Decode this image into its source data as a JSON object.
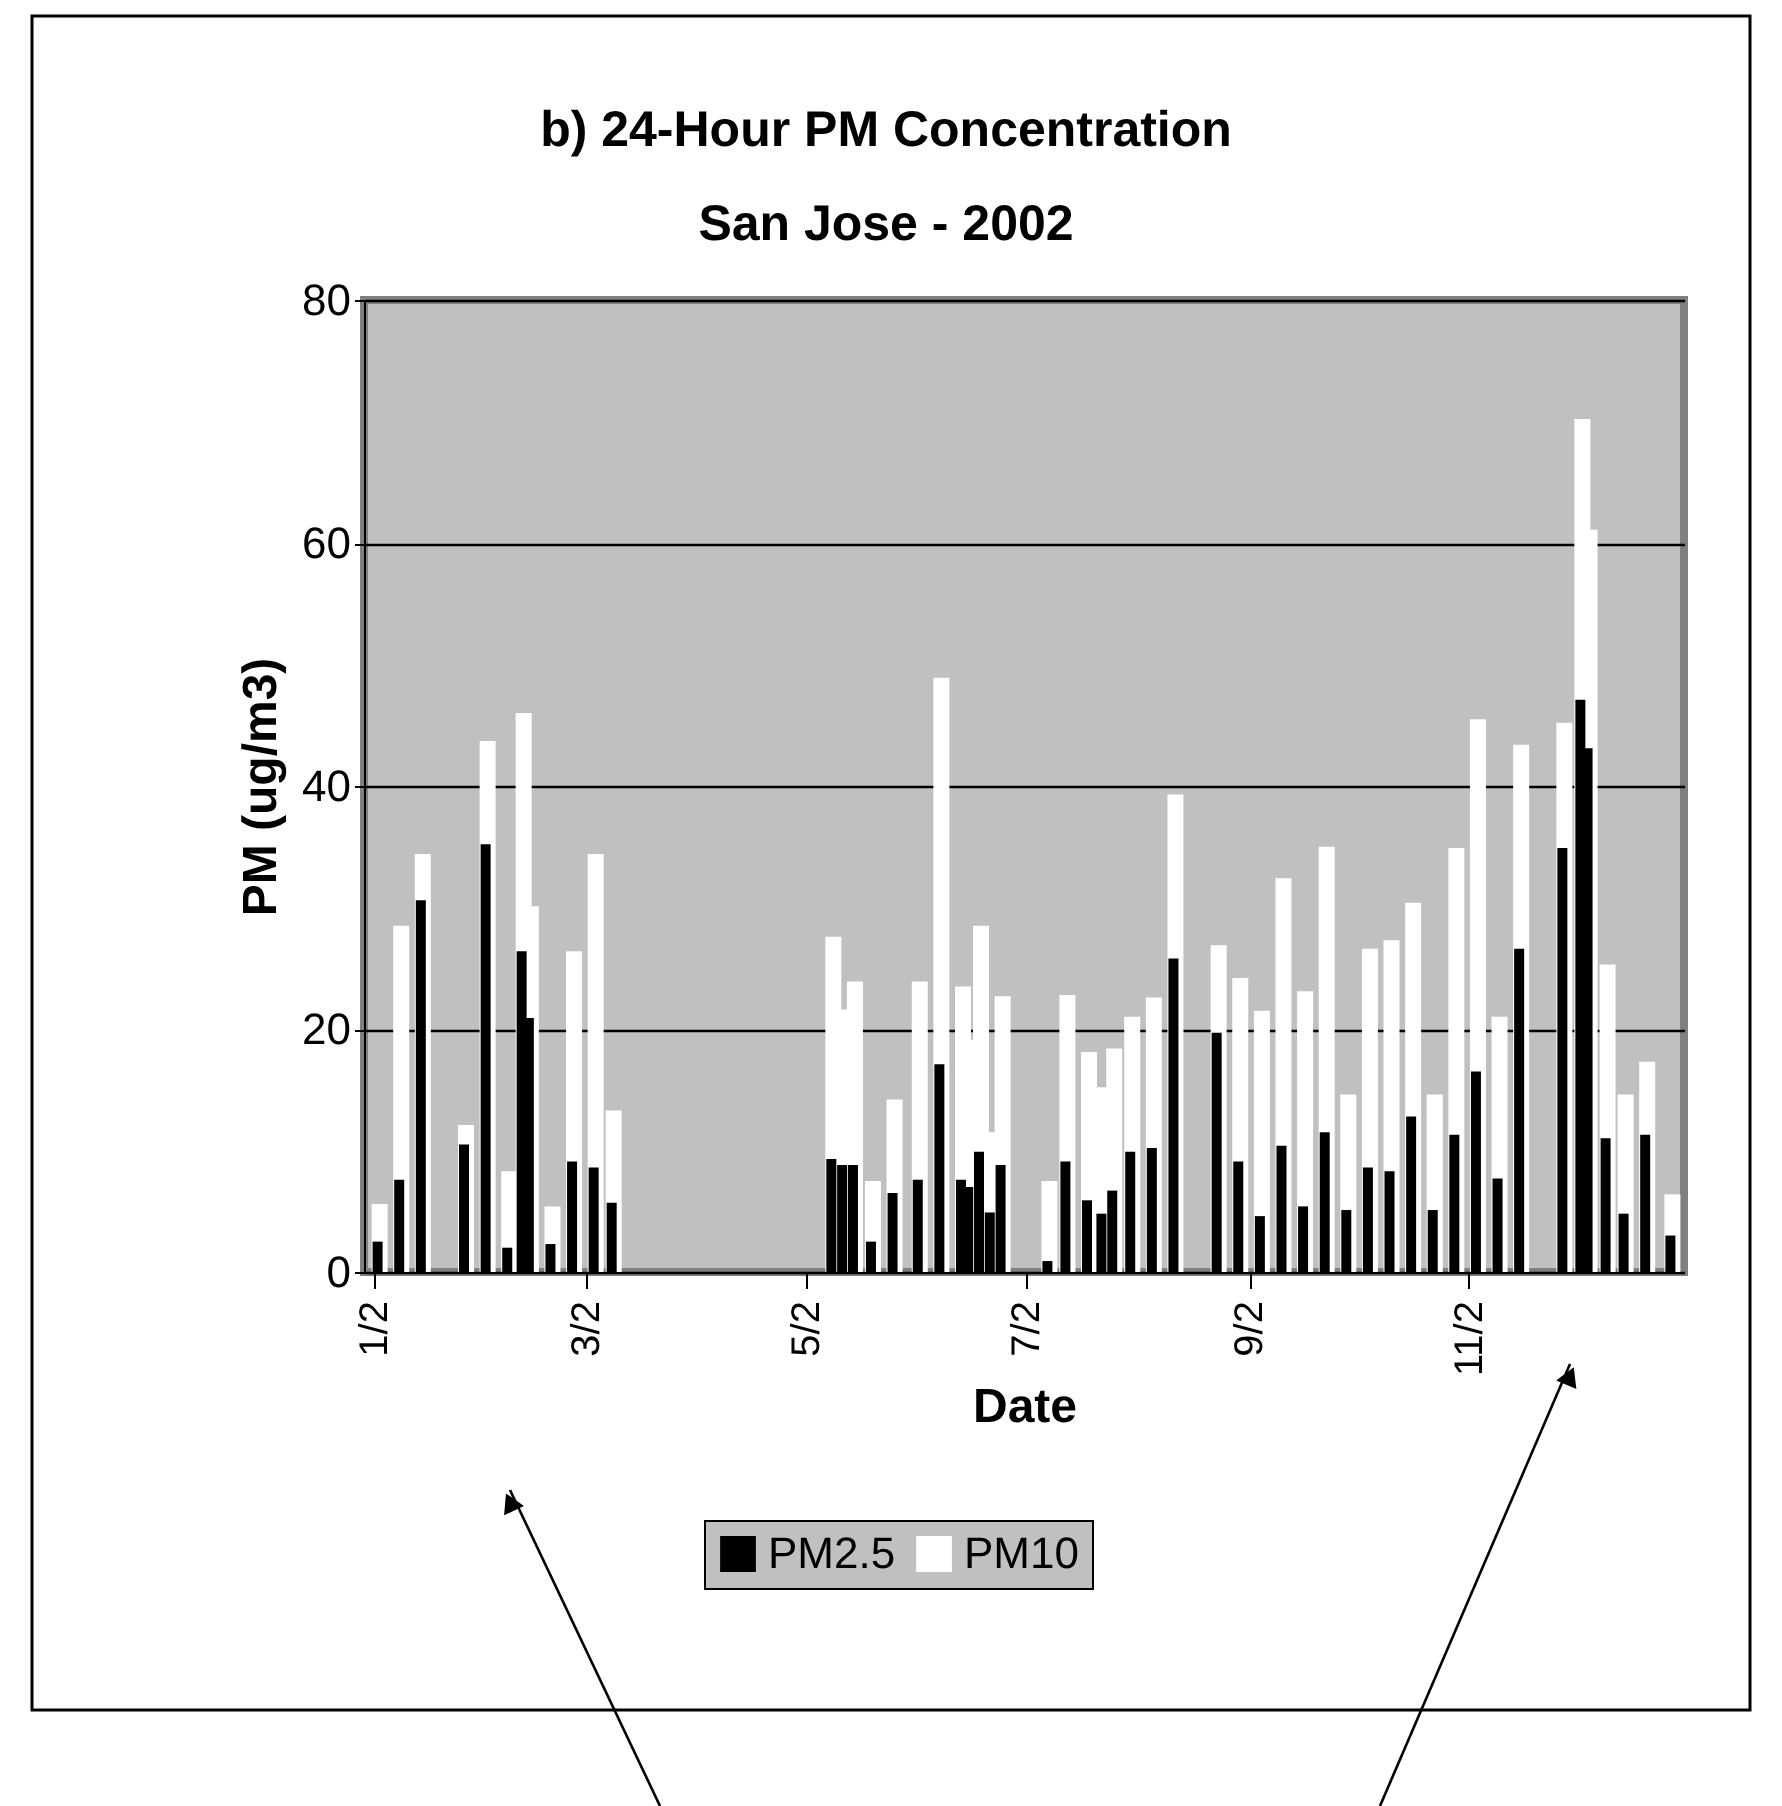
{
  "chart_data": {
    "type": "bar",
    "title": "b) 24-Hour PM Concentration\nSan Jose - 2002",
    "xlabel": "Date",
    "ylabel": "PM (ug/m3)",
    "x": [
      "2002-01-03",
      "2002-01-09",
      "2002-01-15",
      "2002-01-27",
      "2002-02-02",
      "2002-02-08",
      "2002-02-12",
      "2002-02-14",
      "2002-02-20",
      "2002-02-26",
      "2002-03-04",
      "2002-03-09",
      "2002-05-09",
      "2002-05-12",
      "2002-05-15",
      "2002-05-20",
      "2002-05-26",
      "2002-06-02",
      "2002-06-08",
      "2002-06-14",
      "2002-06-16",
      "2002-06-19",
      "2002-06-22",
      "2002-06-25",
      "2002-07-08",
      "2002-07-13",
      "2002-07-19",
      "2002-07-23",
      "2002-07-26",
      "2002-07-31",
      "2002-08-06",
      "2002-08-12",
      "2002-08-24",
      "2002-08-30",
      "2002-09-05",
      "2002-09-11",
      "2002-09-17",
      "2002-09-23",
      "2002-09-29",
      "2002-10-05",
      "2002-10-11",
      "2002-10-17",
      "2002-10-23",
      "2002-10-29",
      "2002-11-04",
      "2002-11-10",
      "2002-11-16",
      "2002-11-28",
      "2002-12-03",
      "2002-12-05",
      "2002-12-10",
      "2002-12-15",
      "2002-12-21",
      "2002-12-28"
    ],
    "series": [
      {
        "name": "PM2.5",
        "color": "#000000",
        "values": [
          2.5,
          7.6,
          30.6,
          10.5,
          35.2,
          2.0,
          26.4,
          20.9,
          2.3,
          9.1,
          8.6,
          5.7,
          9.3,
          8.8,
          8.8,
          2.5,
          6.5,
          7.6,
          17.1,
          7.6,
          7.0,
          9.9,
          4.9,
          8.8,
          0.9,
          9.1,
          5.9,
          4.8,
          6.7,
          9.9,
          10.2,
          25.8,
          19.7,
          9.1,
          4.6,
          10.4,
          5.4,
          11.5,
          5.1,
          8.6,
          8.3,
          12.8,
          5.1,
          11.3,
          16.5,
          7.7,
          26.6,
          34.9,
          47.1,
          43.1,
          11.0,
          4.8,
          11.3,
          3.0
        ]
      },
      {
        "name": "PM10",
        "color": "#ffffff",
        "values": [
          5.6,
          28.5,
          34.4,
          12.1,
          43.7,
          8.3,
          46.0,
          30.1,
          5.4,
          26.4,
          34.4,
          13.3,
          27.6,
          21.6,
          23.9,
          7.5,
          14.2,
          23.9,
          48.9,
          23.5,
          19.1,
          28.5,
          11.5,
          22.7,
          7.5,
          22.8,
          18.1,
          15.2,
          18.4,
          21.0,
          22.6,
          39.3,
          26.9,
          24.2,
          21.5,
          32.4,
          23.1,
          35.0,
          14.6,
          26.6,
          27.3,
          30.4,
          14.6,
          34.9,
          45.5,
          21.0,
          43.4,
          45.2,
          70.2,
          61.1,
          25.3,
          14.6,
          17.3,
          6.4
        ]
      }
    ],
    "xlim": [
      "2002-01-02",
      "2002-12-29"
    ],
    "xticks": [
      {
        "value": "2002-01-02",
        "label": "1/2"
      },
      {
        "value": "2002-03-02",
        "label": "3/2"
      },
      {
        "value": "2002-05-02",
        "label": "5/2"
      },
      {
        "value": "2002-07-02",
        "label": "7/2"
      },
      {
        "value": "2002-09-02",
        "label": "9/2"
      },
      {
        "value": "2002-11-02",
        "label": "11/2"
      }
    ],
    "ylim": [
      0,
      80
    ],
    "yticks": [
      0,
      20,
      40,
      60,
      80
    ],
    "grid": "y",
    "legend": "bottom"
  }
}
